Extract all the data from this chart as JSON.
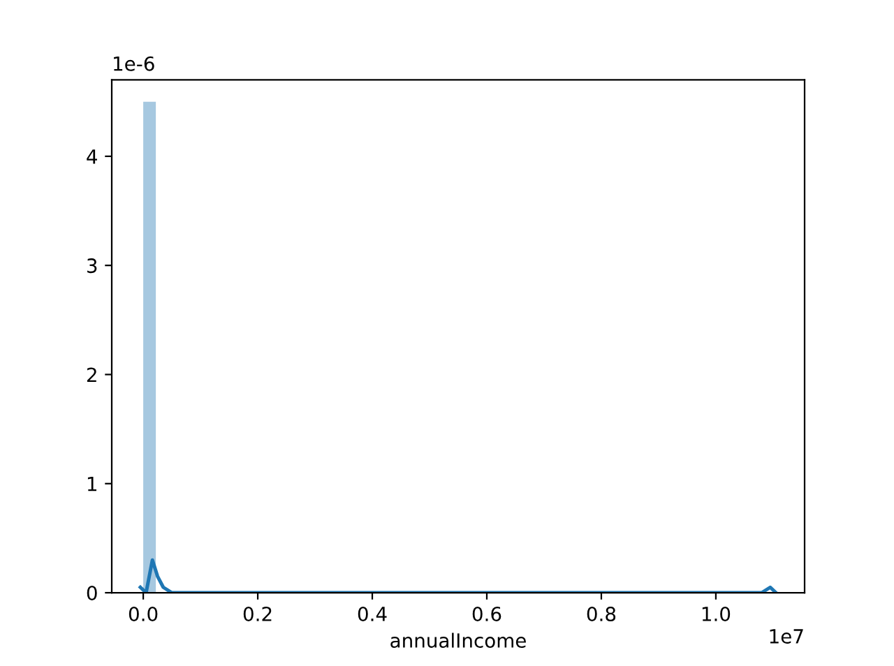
{
  "chart_data": {
    "type": "histogram",
    "xlabel": "annualIncome",
    "annotations": [
      "1e-6",
      "1e7"
    ],
    "xlim": [
      -0.055,
      1.155
    ],
    "xticks": [
      {
        "value": 0,
        "label": "0.0"
      },
      0.2,
      0.4,
      0.6,
      0.8,
      {
        "value": 1,
        "label": "1.0"
      }
    ],
    "ylim": [
      0,
      4.7
    ],
    "yticks": [
      0,
      1,
      2,
      3,
      4
    ],
    "grid": false,
    "legend": false,
    "series": [
      {
        "type": "histogram",
        "color": "#a6c8e0",
        "bins": [
          0,
          0.022,
          0.044,
          0.066,
          0.088,
          0.11,
          0.132,
          0.154,
          0.176,
          0.198,
          0.22,
          0.242,
          0.264,
          0.286,
          0.308,
          0.33,
          0.352,
          0.374,
          0.396,
          0.418,
          0.44,
          0.462,
          0.484,
          0.506,
          0.528,
          0.55,
          0.572,
          0.594,
          0.616,
          0.638,
          0.66,
          0.682,
          0.704,
          0.726,
          0.748,
          0.77,
          0.792,
          0.814,
          0.836,
          0.858,
          0.88,
          0.902,
          0.924,
          0.946,
          0.968,
          0.99,
          1.012,
          1.034,
          1.056,
          1.078,
          1.1
        ],
        "values": [
          4.5,
          0,
          0,
          0,
          0,
          0,
          0,
          0,
          0,
          0,
          0,
          0,
          0,
          0,
          0,
          0,
          0,
          0,
          0,
          0,
          0,
          0,
          0,
          0,
          0,
          0,
          0,
          0,
          0,
          0,
          0,
          0,
          0,
          0,
          0,
          0,
          0,
          0,
          0,
          0,
          0,
          0,
          0,
          0,
          0,
          0,
          0,
          0,
          0,
          0
        ]
      },
      {
        "type": "line",
        "color": "#1f77b4",
        "x": [
          -0.005,
          0.005,
          0.016,
          0.025,
          0.035,
          0.05,
          0.07,
          0.1,
          0.2,
          0.4,
          0.6,
          0.8,
          1.0,
          1.08,
          1.095,
          1.105
        ],
        "values": [
          0.05,
          0,
          0.3,
          0.15,
          0.05,
          0,
          0,
          0,
          0,
          0,
          0,
          0,
          0,
          0,
          0.05,
          0
        ]
      }
    ]
  }
}
